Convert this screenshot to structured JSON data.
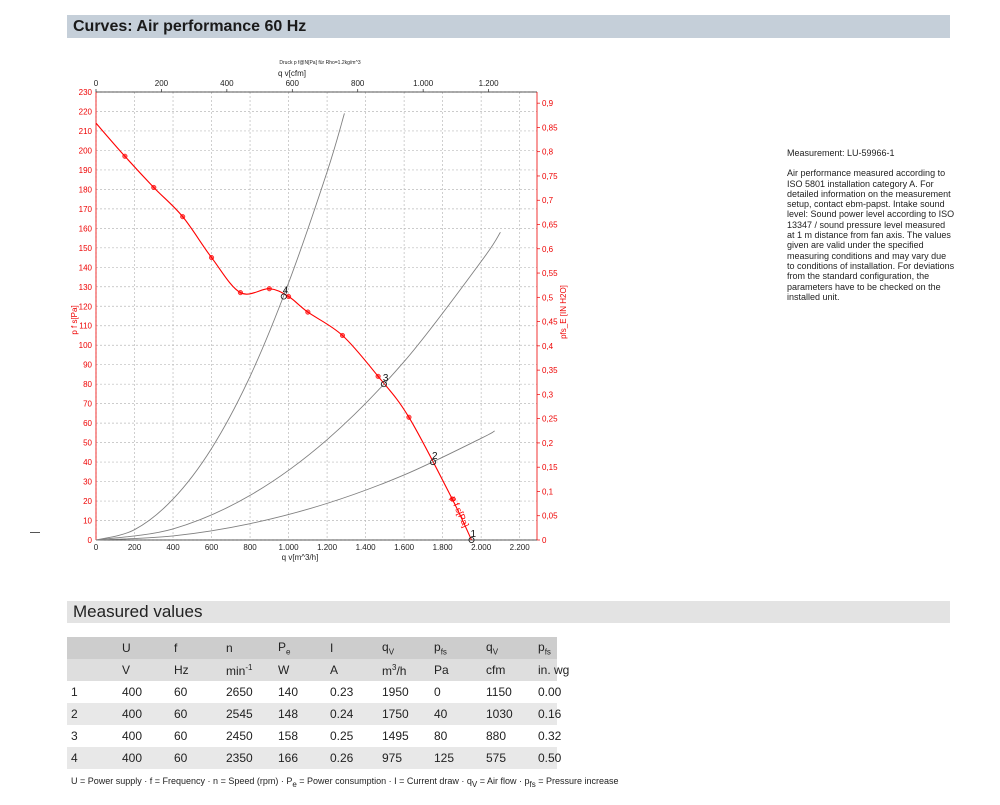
{
  "header": {
    "title": "Curves: Air performance 60 Hz"
  },
  "chart_data": {
    "type": "line",
    "subtitle": "Druck p f@N[Pa] für Rho=1.2kg/m^3",
    "xlabel": "q v[m^3/h]",
    "x2label": "q v[cfm]",
    "ylabel": "p f s[Pa]",
    "y2label": "pfs_E [IN H2O]",
    "xlim": [
      0,
      2290
    ],
    "x2lim": [
      0,
      1348
    ],
    "ylim": [
      0,
      230
    ],
    "y2lim": [
      0,
      0.923
    ],
    "xticks": [
      0,
      200,
      400,
      600,
      800,
      {
        "value": 1000,
        "label": "1.000"
      },
      {
        "value": 1200,
        "label": "1.200"
      },
      {
        "value": 1400,
        "label": "1.400"
      },
      {
        "value": 1600,
        "label": "1.600"
      },
      {
        "value": 1800,
        "label": "1.800"
      },
      {
        "value": 2000,
        "label": "2.000"
      },
      {
        "value": 2200,
        "label": "2.200"
      }
    ],
    "x2ticks": [
      0,
      200,
      400,
      600,
      800,
      {
        "value": 1000,
        "label": "1.000"
      },
      {
        "value": 1200,
        "label": "1.200"
      }
    ],
    "yticks": [
      0,
      10,
      20,
      30,
      40,
      50,
      60,
      70,
      80,
      90,
      100,
      110,
      120,
      130,
      140,
      150,
      160,
      170,
      180,
      190,
      200,
      210,
      220,
      230
    ],
    "y2ticks": [
      0,
      {
        "value": 0.05,
        "label": "0,05"
      },
      {
        "value": 0.1,
        "label": "0,1"
      },
      {
        "value": 0.15,
        "label": "0,15"
      },
      {
        "value": 0.2,
        "label": "0,2"
      },
      {
        "value": 0.25,
        "label": "0,25"
      },
      {
        "value": 0.3,
        "label": "0,3"
      },
      {
        "value": 0.35,
        "label": "0,35"
      },
      {
        "value": 0.4,
        "label": "0,4"
      },
      {
        "value": 0.45,
        "label": "0,45"
      },
      {
        "value": 0.5,
        "label": "0,5"
      },
      {
        "value": 0.55,
        "label": "0,55"
      },
      {
        "value": 0.6,
        "label": "0,6"
      },
      {
        "value": 0.65,
        "label": "0,65"
      },
      {
        "value": 0.7,
        "label": "0,7"
      },
      {
        "value": 0.75,
        "label": "0,75"
      },
      {
        "value": 0.8,
        "label": "0,8"
      },
      {
        "value": 0.85,
        "label": "0,85"
      },
      {
        "value": 0.9,
        "label": "0,9"
      }
    ],
    "grid": true,
    "series": [
      {
        "name": "p f s[Pa]",
        "color": "#ff0000",
        "markers": true,
        "x": [
          0,
          150,
          300,
          450,
          600,
          750,
          900,
          1000,
          1100,
          1280,
          1465,
          1625,
          1850,
          1950
        ],
        "values": [
          214,
          197,
          181,
          166,
          145,
          127,
          129,
          125,
          117,
          105,
          84,
          63,
          21,
          0
        ]
      },
      {
        "color": "#808080",
        "x": [
          0,
          200,
          400,
          600,
          800,
          1000,
          1200,
          1290
        ],
        "values": [
          0,
          5.3,
          21,
          47,
          84,
          132,
          189,
          219
        ]
      },
      {
        "color": "#808080",
        "x": [
          0,
          400,
          800,
          1200,
          1600,
          2000,
          2100
        ],
        "values": [
          0,
          5.7,
          22.9,
          51.5,
          91.6,
          143,
          158
        ]
      },
      {
        "color": "#808080",
        "x": [
          0,
          400,
          800,
          1200,
          1600,
          2000,
          2070
        ],
        "values": [
          0,
          2.1,
          8.4,
          18.8,
          33.4,
          52.2,
          56
        ]
      }
    ],
    "operating_points": {
      "labels": [
        "1",
        "2",
        "3",
        "4"
      ],
      "x": [
        1950,
        1750,
        1495,
        975
      ],
      "values": [
        0,
        40,
        80,
        125
      ]
    }
  },
  "measurement": {
    "id": "Measurement: LU-59966-1",
    "text": "Air performance measured according to ISO 5801 installation category A. For detailed information on the measurement setup, contact ebm-papst. Intake sound level: Sound power level according to ISO 13347 / sound pressure level measured at 1 m distance from fan axis. The values given are valid under the specified measuring conditions and may vary due to conditions of installation. For deviations from the standard configuration, the parameters have to be checked on the installed unit."
  },
  "measured_values": {
    "title": "Measured values"
  },
  "table": {
    "header": [
      "U",
      "f",
      "n",
      {
        "main": "P",
        "sub": "e"
      },
      "I",
      {
        "main": "q",
        "sub": "V"
      },
      {
        "main": "p",
        "sub": "fs"
      },
      {
        "main": "q",
        "sub": "V"
      },
      {
        "main": "p",
        "sub": "fs"
      }
    ],
    "units": [
      "V",
      "Hz",
      {
        "main": "min",
        "sup": "-1"
      },
      "W",
      "A",
      {
        "main": "m",
        "sup": "3",
        "post": "/h"
      },
      "Pa",
      "cfm",
      "in. wg"
    ],
    "rows": [
      [
        "1",
        "400",
        "60",
        "2650",
        "140",
        "0.23",
        "1950",
        "0",
        "1150",
        "0.00"
      ],
      [
        "2",
        "400",
        "60",
        "2545",
        "148",
        "0.24",
        "1750",
        "40",
        "1030",
        "0.16"
      ],
      [
        "3",
        "400",
        "60",
        "2450",
        "158",
        "0.25",
        "1495",
        "80",
        "880",
        "0.32"
      ],
      [
        "4",
        "400",
        "60",
        "2350",
        "166",
        "0.26",
        "975",
        "125",
        "575",
        "0.50"
      ]
    ]
  },
  "footnote": [
    {
      "text": "U = Power supply · f = Frequency · n = Speed (rpm) · P"
    },
    {
      "sub": "e"
    },
    {
      "text": " = Power consumption · I = Current draw · q"
    },
    {
      "sub": "V"
    },
    {
      "text": " = Air flow · p"
    },
    {
      "sub": "fs"
    },
    {
      "text": " = Pressure increase"
    }
  ]
}
